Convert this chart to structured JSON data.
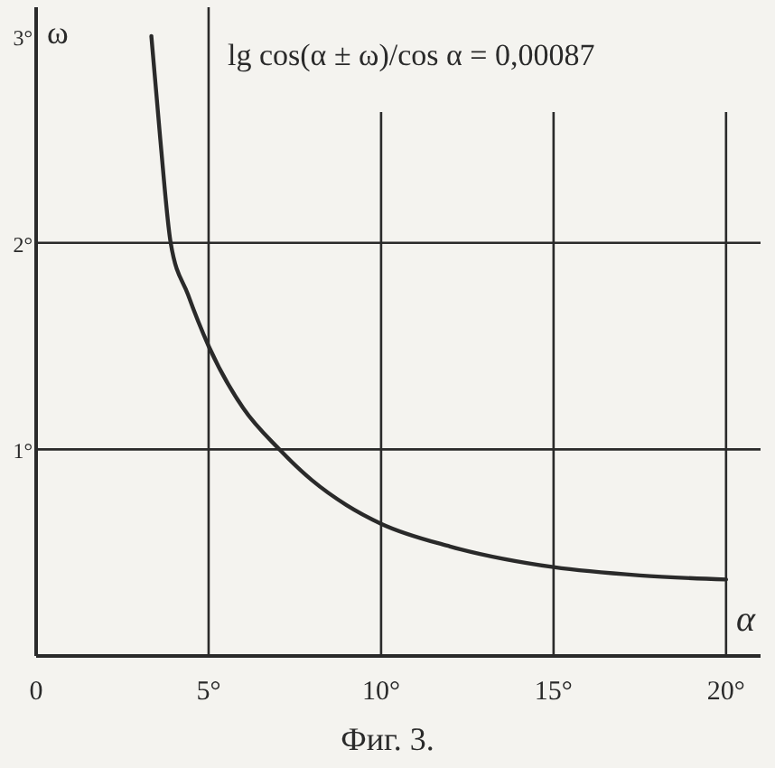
{
  "chart_data": {
    "type": "line",
    "xlabel": "α",
    "ylabel": "ω",
    "annotations": [
      "lg cos(α ± ω)/cos α = 0,00087",
      "Фиг. 3."
    ],
    "x": [
      3.34,
      3.6,
      3.9,
      4.4,
      5,
      6,
      7.05,
      8,
      9,
      10,
      12,
      15,
      17.5,
      20
    ],
    "series": [
      {
        "color": "#2a2a2a",
        "values": [
          3.0,
          2.5,
          2.0,
          1.75,
          1.5,
          1.2,
          1.0,
          0.85,
          0.73,
          0.64,
          0.53,
          0.43,
          0.39,
          0.37
        ]
      }
    ],
    "xlim": [
      0,
      21
    ],
    "ylim": [
      0,
      3.14
    ],
    "xticks": [
      0,
      {
        "value": 5,
        "label": "5°"
      },
      {
        "value": 10,
        "label": "10°"
      },
      {
        "value": 15,
        "label": "15°"
      },
      {
        "value": 20,
        "label": "20°"
      }
    ],
    "yticks": [
      {
        "value": 1,
        "label": "1°"
      },
      {
        "value": 2,
        "label": "2°"
      },
      {
        "value": 3,
        "label": "3°"
      }
    ],
    "grid": true,
    "marker": "none",
    "line_style": "solid"
  }
}
